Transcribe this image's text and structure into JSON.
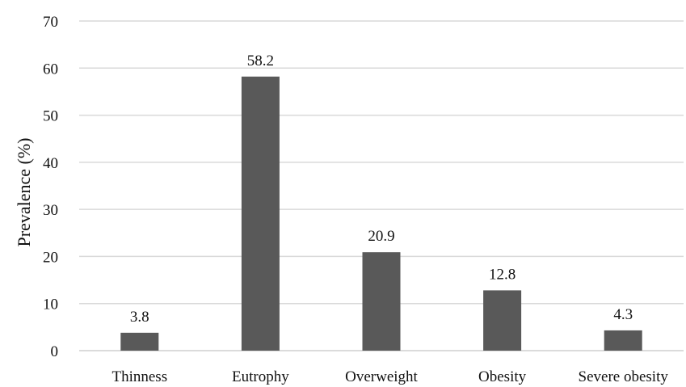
{
  "chart_data": {
    "type": "bar",
    "categories": [
      "Thinness",
      "Eutrophy",
      "Overweight",
      "Obesity",
      "Severe obesity"
    ],
    "values": [
      3.8,
      58.2,
      20.9,
      12.8,
      4.3
    ],
    "data_labels": [
      "3.8",
      "58.2",
      "20.9",
      "12.8",
      "4.3"
    ],
    "title": "",
    "xlabel": "",
    "ylabel": "Prevalence (%)",
    "ylim": [
      0,
      70
    ],
    "yticks": [
      0,
      10,
      20,
      30,
      40,
      50,
      60,
      70
    ],
    "grid": true,
    "legend": "none",
    "bar_color": "#595959"
  }
}
